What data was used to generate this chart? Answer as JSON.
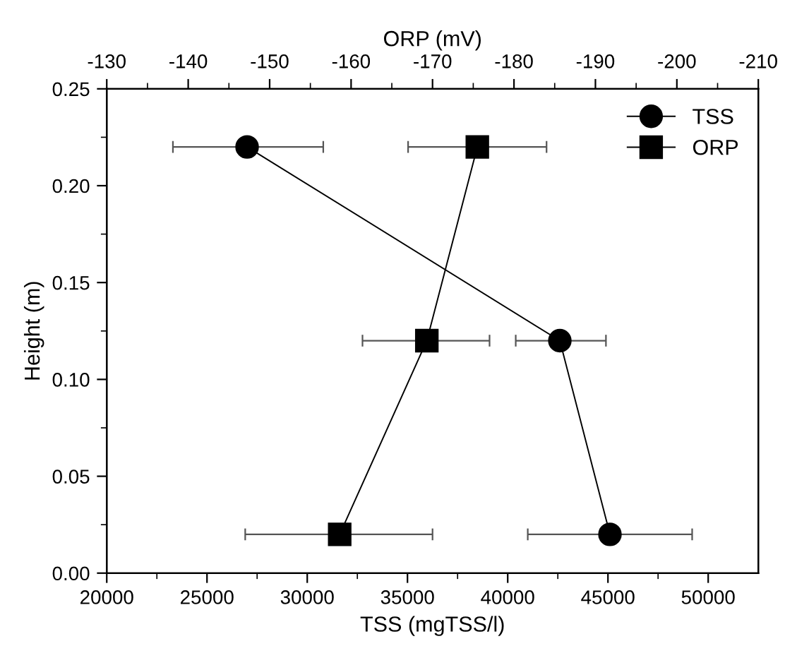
{
  "chart_data": {
    "type": "line",
    "xlabel": "TSS (mgTSS/l)",
    "ylabel": "Height (m)",
    "x2label": "ORP (mV)",
    "xlim": [
      20000,
      52500
    ],
    "xticks": [
      20000,
      25000,
      30000,
      35000,
      40000,
      45000,
      50000
    ],
    "x2lim": [
      -130,
      -210
    ],
    "x2ticks": [
      -130,
      -140,
      -150,
      -160,
      -170,
      -180,
      -190,
      -200,
      -210
    ],
    "ylim": [
      0,
      0.25
    ],
    "yticks": [
      {
        "value": 0,
        "label": "0.00"
      },
      {
        "value": 0.05,
        "label": "0.05"
      },
      {
        "value": 0.1,
        "label": "0.10"
      },
      {
        "value": 0.15,
        "label": "0.15"
      },
      {
        "value": 0.2,
        "label": "0.20"
      },
      {
        "value": 0.25,
        "label": "0.25"
      }
    ],
    "grid": false,
    "legend": "top right",
    "line_style": "solid",
    "series": [
      {
        "name": "TSS",
        "color": "#000000",
        "marker": "circle",
        "x": [
          27000,
          42600,
          45100
        ],
        "values": [
          0.22,
          0.12,
          0.02
        ],
        "xerrors": [
          [
            23300,
            30800
          ],
          [
            40400,
            44900
          ],
          [
            41000,
            49200
          ]
        ]
      },
      {
        "name": "ORP",
        "color": "#000000",
        "marker": "square",
        "axis": "x2",
        "x": [
          -175.5,
          -169.3,
          -158.6
        ],
        "values": [
          0.22,
          0.12,
          0.02
        ],
        "xerrors": [
          [
            -167,
            -184
          ],
          [
            -161.6,
            -177.2
          ],
          [
            -147.2,
            -170.2
          ]
        ]
      }
    ]
  }
}
